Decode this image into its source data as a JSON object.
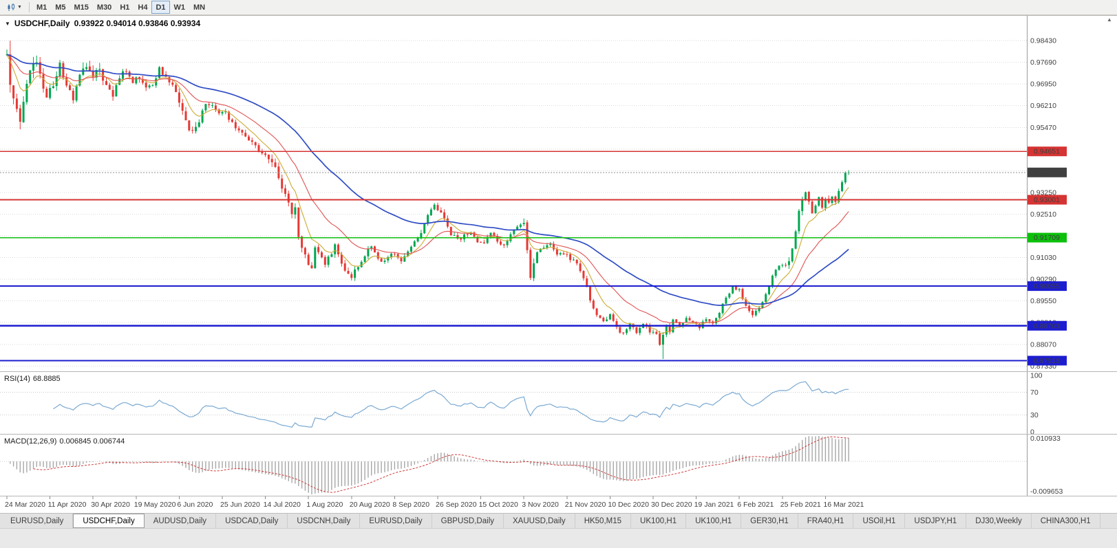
{
  "toolbar": {
    "timeframes": [
      "M1",
      "M5",
      "M15",
      "M30",
      "H1",
      "H4",
      "D1",
      "W1",
      "MN"
    ],
    "active_timeframe": "D1",
    "chart_type_icon": "candlestick-chart",
    "dropdown_icon": "caret-down"
  },
  "chart": {
    "symbol": "USDCHF,Daily",
    "ohlc_text": "0.93922 0.94014 0.93846 0.93934",
    "current_price": 0.93934,
    "current_price_label": "0.93934",
    "axis_labels": [
      "0.98430",
      "0.97690",
      "0.96950",
      "0.96210",
      "0.95470",
      "0.93250",
      "0.92510",
      "0.91770",
      "0.91030",
      "0.90290",
      "0.89550",
      "0.88810",
      "0.88070",
      "0.87330"
    ],
    "grid": {
      "min": 0.8733,
      "step": 0.0074,
      "count": 16
    },
    "hlines": [
      {
        "price": 0.94651,
        "label": "0.94651",
        "color": "#d63333",
        "width": 1.6
      },
      {
        "price": 0.93001,
        "label": "0.93001",
        "color": "#d63333",
        "width": 1.6
      },
      {
        "price": 0.91709,
        "label": "0.91709",
        "color": "#0cc00c",
        "width": 1.6
      },
      {
        "price": 0.90055,
        "label": "0.90055",
        "color": "#1d1dd0",
        "width": 2.2
      },
      {
        "price": 0.88703,
        "label": "0.88703",
        "color": "#1d1dd0",
        "width": 2.2
      },
      {
        "price": 0.87513,
        "label": "0.87513",
        "color": "#1d1dd0",
        "width": 2.2
      }
    ],
    "colors": {
      "up": "#00a650",
      "down": "#e53935",
      "ma_fast": "#ccaa33",
      "ma_mid": "#e05252",
      "ma_slow": "#2f4cc4",
      "grid": "#dadada",
      "current_badge": "#404040"
    }
  },
  "rsi": {
    "label": "RSI(14)",
    "value": "68.8885",
    "axis": [
      "100",
      "70",
      "30",
      "0"
    ],
    "levels": [
      70,
      30
    ],
    "line_color": "#7aa9d2"
  },
  "macd": {
    "label": "MACD(12,26,9)",
    "values": "0.006845 0.006744",
    "axis_top": "0.010933",
    "axis_bottom": "-0.009653",
    "histogram_color": "#a6a6a6",
    "signal_color": "#cc3b3b"
  },
  "tabs": [
    {
      "label": "EURUSD,Daily",
      "active": false
    },
    {
      "label": "USDCHF,Daily",
      "active": true
    },
    {
      "label": "AUDUSD,Daily",
      "active": false
    },
    {
      "label": "USDCAD,Daily",
      "active": false
    },
    {
      "label": "USDCNH,Daily",
      "active": false
    },
    {
      "label": "EURUSD,Daily",
      "active": false
    },
    {
      "label": "GBPUSD,Daily",
      "active": false
    },
    {
      "label": "XAUUSD,Daily",
      "active": false
    },
    {
      "label": "HK50,M15",
      "active": false
    },
    {
      "label": "UK100,H1",
      "active": false
    },
    {
      "label": "UK100,H1",
      "active": false
    },
    {
      "label": "GER30,H1",
      "active": false
    },
    {
      "label": "FRA40,H1",
      "active": false
    },
    {
      "label": "USOil,H1",
      "active": false
    },
    {
      "label": "USDJPY,H1",
      "active": false
    },
    {
      "label": "DJ30,Weekly",
      "active": false
    },
    {
      "label": "CHINA300,H1",
      "active": false
    }
  ],
  "chart_data": {
    "type": "candlestick",
    "title": "USDCHF,Daily",
    "x_labels": [
      "24 Mar 2020",
      "11 Apr 2020",
      "30 Apr 2020",
      "19 May 2020",
      "6 Jun 2020",
      "25 Jun 2020",
      "14 Jul 2020",
      "1 Aug 2020",
      "20 Aug 2020",
      "8 Sep 2020",
      "26 Sep 2020",
      "15 Oct 2020",
      "3 Nov 2020",
      "21 Nov 2020",
      "10 Dec 2020",
      "30 Dec 2020",
      "19 Jan 2021",
      "6 Feb 2021",
      "25 Feb 2021",
      "16 Mar 2021"
    ],
    "candles_per_label": 13,
    "n_candles": 255,
    "ylim": [
      0.8715,
      0.993
    ],
    "last_candle": {
      "open": 0.93922,
      "high": 0.94014,
      "low": 0.93846,
      "close": 0.93934
    },
    "hline_levels": [
      0.94651,
      0.93001,
      0.91709,
      0.90055,
      0.88703,
      0.87513
    ],
    "current_price": 0.93934,
    "close_anchors": [
      [
        0,
        0.978
      ],
      [
        1,
        0.97
      ],
      [
        3,
        0.962
      ],
      [
        4,
        0.9565
      ],
      [
        6,
        0.969
      ],
      [
        8,
        0.978
      ],
      [
        10,
        0.973
      ],
      [
        12,
        0.964
      ],
      [
        14,
        0.97
      ],
      [
        16,
        0.9755
      ],
      [
        18,
        0.97
      ],
      [
        20,
        0.964
      ],
      [
        22,
        0.973
      ],
      [
        24,
        0.976
      ],
      [
        26,
        0.972
      ],
      [
        28,
        0.9745
      ],
      [
        30,
        0.9685
      ],
      [
        32,
        0.966
      ],
      [
        34,
        0.972
      ],
      [
        36,
        0.974
      ],
      [
        38,
        0.97
      ],
      [
        40,
        0.972
      ],
      [
        42,
        0.968
      ],
      [
        44,
        0.97
      ],
      [
        46,
        0.9745
      ],
      [
        48,
        0.972
      ],
      [
        50,
        0.969
      ],
      [
        52,
        0.964
      ],
      [
        54,
        0.956
      ],
      [
        56,
        0.9535
      ],
      [
        58,
        0.957
      ],
      [
        60,
        0.963
      ],
      [
        62,
        0.962
      ],
      [
        64,
        0.959
      ],
      [
        66,
        0.96
      ],
      [
        68,
        0.956
      ],
      [
        70,
        0.954
      ],
      [
        72,
        0.952
      ],
      [
        74,
        0.9495
      ],
      [
        76,
        0.947
      ],
      [
        78,
        0.945
      ],
      [
        80,
        0.943
      ],
      [
        82,
        0.938
      ],
      [
        84,
        0.931
      ],
      [
        85,
        0.929
      ],
      [
        86,
        0.925
      ],
      [
        87,
        0.928
      ],
      [
        88,
        0.918
      ],
      [
        89,
        0.914
      ],
      [
        90,
        0.9105
      ],
      [
        91,
        0.908
      ],
      [
        92,
        0.906
      ],
      [
        93,
        0.913
      ],
      [
        95,
        0.91
      ],
      [
        96,
        0.9085
      ],
      [
        98,
        0.912
      ],
      [
        99,
        0.9145
      ],
      [
        101,
        0.908
      ],
      [
        102,
        0.906
      ],
      [
        104,
        0.904
      ],
      [
        106,
        0.907
      ],
      [
        108,
        0.911
      ],
      [
        110,
        0.9145
      ],
      [
        112,
        0.91
      ],
      [
        113,
        0.9085
      ],
      [
        115,
        0.9105
      ],
      [
        117,
        0.912
      ],
      [
        119,
        0.9095
      ],
      [
        121,
        0.912
      ],
      [
        123,
        0.9155
      ],
      [
        125,
        0.919
      ],
      [
        127,
        0.925
      ],
      [
        129,
        0.929
      ],
      [
        130,
        0.927
      ],
      [
        132,
        0.9235
      ],
      [
        134,
        0.9185
      ],
      [
        136,
        0.9165
      ],
      [
        138,
        0.9175
      ],
      [
        140,
        0.919
      ],
      [
        142,
        0.916
      ],
      [
        144,
        0.9155
      ],
      [
        146,
        0.9185
      ],
      [
        148,
        0.916
      ],
      [
        150,
        0.9145
      ],
      [
        152,
        0.918
      ],
      [
        154,
        0.921
      ],
      [
        156,
        0.9215
      ],
      [
        157,
        0.912
      ],
      [
        158,
        0.904
      ],
      [
        159,
        0.908
      ],
      [
        160,
        0.9125
      ],
      [
        162,
        0.914
      ],
      [
        164,
        0.9155
      ],
      [
        166,
        0.911
      ],
      [
        168,
        0.912
      ],
      [
        170,
        0.91
      ],
      [
        172,
        0.9085
      ],
      [
        174,
        0.9035
      ],
      [
        176,
        0.896
      ],
      [
        178,
        0.8905
      ],
      [
        180,
        0.8885
      ],
      [
        182,
        0.8905
      ],
      [
        184,
        0.8865
      ],
      [
        186,
        0.884
      ],
      [
        188,
        0.8875
      ],
      [
        190,
        0.8845
      ],
      [
        192,
        0.888
      ],
      [
        194,
        0.885
      ],
      [
        196,
        0.884
      ],
      [
        197,
        0.881
      ],
      [
        198,
        0.8835
      ],
      [
        199,
        0.887
      ],
      [
        200,
        0.885
      ],
      [
        201,
        0.8895
      ],
      [
        203,
        0.887
      ],
      [
        205,
        0.8895
      ],
      [
        207,
        0.8885
      ],
      [
        209,
        0.8865
      ],
      [
        211,
        0.8895
      ],
      [
        213,
        0.888
      ],
      [
        215,
        0.892
      ],
      [
        217,
        0.8965
      ],
      [
        219,
        0.9
      ],
      [
        221,
        0.8995
      ],
      [
        223,
        0.8935
      ],
      [
        225,
        0.8905
      ],
      [
        227,
        0.893
      ],
      [
        229,
        0.8975
      ],
      [
        231,
        0.904
      ],
      [
        233,
        0.908
      ],
      [
        235,
        0.9085
      ],
      [
        236,
        0.909
      ],
      [
        237,
        0.913
      ],
      [
        238,
        0.9185
      ],
      [
        239,
        0.926
      ],
      [
        240,
        0.931
      ],
      [
        241,
        0.933
      ],
      [
        242,
        0.929
      ],
      [
        243,
        0.9255
      ],
      [
        244,
        0.9285
      ],
      [
        245,
        0.931
      ],
      [
        246,
        0.927
      ],
      [
        247,
        0.93
      ],
      [
        248,
        0.9285
      ],
      [
        249,
        0.931
      ],
      [
        250,
        0.9295
      ],
      [
        251,
        0.933
      ],
      [
        252,
        0.936
      ],
      [
        253,
        0.9392
      ],
      [
        254,
        0.93934
      ]
    ],
    "volatility_segments": [
      [
        0,
        0.0048
      ],
      [
        10,
        0.0038
      ],
      [
        30,
        0.0026
      ],
      [
        52,
        0.0032
      ],
      [
        60,
        0.002
      ],
      [
        78,
        0.003
      ],
      [
        92,
        0.0024
      ],
      [
        106,
        0.0018
      ],
      [
        119,
        0.002
      ],
      [
        144,
        0.0018
      ],
      [
        156,
        0.003
      ],
      [
        160,
        0.0018
      ],
      [
        184,
        0.0018
      ],
      [
        195,
        0.002
      ],
      [
        201,
        0.0014
      ],
      [
        215,
        0.0016
      ],
      [
        235,
        0.0026
      ],
      [
        242,
        0.002
      ],
      [
        251,
        0.0016
      ]
    ],
    "overrides": {
      "1": {
        "high": 0.9843
      },
      "198": {
        "low": 0.8757
      },
      "254": {
        "open": 0.93922,
        "high": 0.94014,
        "low": 0.93846,
        "close": 0.93934
      }
    },
    "indicators": {
      "ma_periods": [
        8,
        21,
        55
      ],
      "rsi_period": 14,
      "macd_params": [
        12,
        26,
        9
      ]
    }
  }
}
